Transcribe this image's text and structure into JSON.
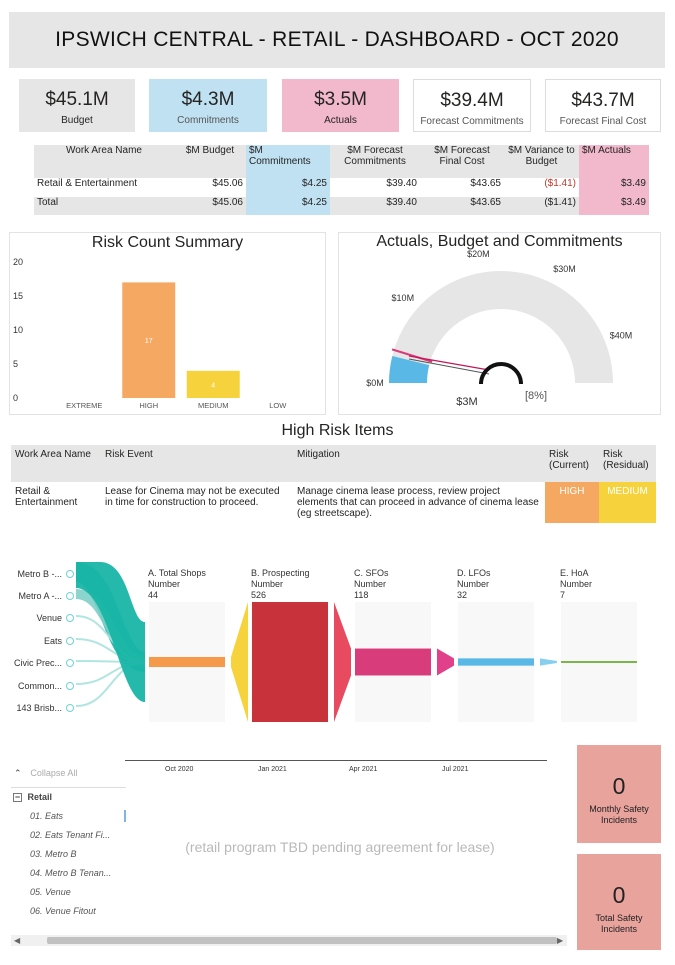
{
  "header": {
    "title": "IPSWICH CENTRAL - RETAIL - DASHBOARD - OCT 2020"
  },
  "kpis": [
    {
      "value": "$45.1M",
      "label": "Budget",
      "bg": "#e6e6e6"
    },
    {
      "value": "$4.3M",
      "label": "Commitments",
      "bg": "#bfe1f2"
    },
    {
      "value": "$3.5M",
      "label": "Actuals",
      "bg": "#f2b8cc"
    },
    {
      "value": "$39.4M",
      "label": "Forecast Commitments",
      "bg": "#ffffff"
    },
    {
      "value": "$43.7M",
      "label": "Forecast Final Cost",
      "bg": "#ffffff"
    }
  ],
  "summary_table": {
    "headers": [
      "Work Area Name",
      "$M Budget",
      "$M Commitments",
      "$M Forecast Commitments",
      "$M Forecast Final Cost",
      "$M Variance to Budget",
      "$M Actuals"
    ],
    "rows": [
      [
        "Retail & Entertainment",
        "$45.06",
        "$4.25",
        "$39.40",
        "$43.65",
        "($1.41)",
        "$3.49"
      ]
    ],
    "total": [
      "Total",
      "$45.06",
      "$4.25",
      "$39.40",
      "$43.65",
      "($1.41)",
      "$3.49"
    ]
  },
  "risk_chart": {
    "title": "Risk Count Summary",
    "chart_data": {
      "type": "bar",
      "categories": [
        "EXTREME",
        "HIGH",
        "MEDIUM",
        "LOW"
      ],
      "values": [
        0,
        17,
        4,
        0
      ],
      "colors": [
        "#f5a862",
        "#f5a862",
        "#f6d33c",
        "#cccccc"
      ],
      "ylim": [
        0,
        20
      ],
      "yticks": [
        "0",
        "5",
        "10",
        "15",
        "20"
      ],
      "data_labels": [
        "",
        "17",
        "4",
        ""
      ]
    }
  },
  "gauge_chart": {
    "title": "Actuals, Budget and Commitments",
    "scale_labels": [
      "$0M",
      "$10M",
      "$20M",
      "$30M",
      "$40M"
    ],
    "value_label": "$3M",
    "percent_label": "[8%]",
    "chart_data": {
      "type": "gauge",
      "min": 0,
      "max": 45.1,
      "actuals": 3.5,
      "commitments": 4.3,
      "budget": 45.1
    }
  },
  "high_risk": {
    "title": "High Risk Items",
    "headers": [
      "Work Area Name",
      "Risk Event",
      "Mitigation",
      "Risk (Current)",
      "Risk (Residual)"
    ],
    "rows": [
      [
        "Retail & Entertainment",
        "Lease for Cinema may not be executed in time for construction to proceed.",
        "Manage cinema lease process, review project elements that can proceed in advance of cinema lease (eg streetscape).",
        "HIGH",
        "MEDIUM"
      ]
    ]
  },
  "funnel": {
    "sources": [
      "Metro B -...",
      "Metro A -...",
      "Venue",
      "Eats",
      "Civic Prec...",
      "Common...",
      "143 Brisb..."
    ],
    "stages": [
      {
        "name": "A. Total Shops",
        "metric": "Number",
        "value": "44",
        "color": "#f59a4b"
      },
      {
        "name": "B. Prospecting",
        "metric": "Number",
        "value": "526",
        "color": "#c8323a"
      },
      {
        "name": "C. SFOs",
        "metric": "Number",
        "value": "118",
        "color": "#d83c7a"
      },
      {
        "name": "D. LFOs",
        "metric": "Number",
        "value": "32",
        "color": "#5ab8e6"
      },
      {
        "name": "E. HoA",
        "metric": "Number",
        "value": "7",
        "color": "#7ab648"
      }
    ]
  },
  "timeline": {
    "collapse_label": "Collapse All",
    "ticks": [
      "Oct 2020",
      "Jan 2021",
      "Apr 2021",
      "Jul 2021"
    ],
    "tree_root": "Retail",
    "tree_items": [
      "01. Eats",
      "02. Eats Tenant Fi...",
      "03. Metro B",
      "04. Metro B Tenan...",
      "05. Venue",
      "06. Venue Fitout"
    ],
    "placeholder": "(retail program TBD pending agreement for lease)"
  },
  "safety": [
    {
      "value": "0",
      "label": "Monthly  Safety Incidents"
    },
    {
      "value": "0",
      "label": "Total Safety Incidents"
    }
  ]
}
